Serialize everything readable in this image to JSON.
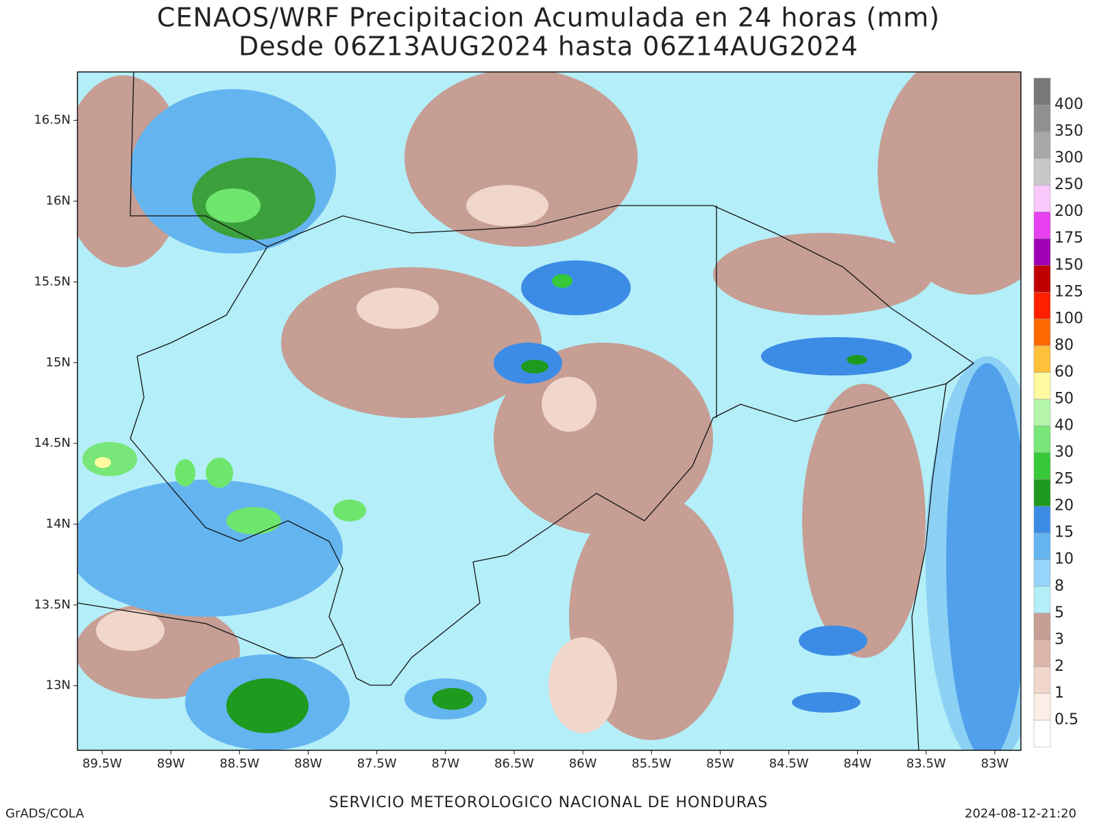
{
  "chart_data": {
    "type": "contour-map",
    "title": "CENAOS/WRF Precipitacion Acumulada en 24 horas (mm)",
    "subtitle": "Desde 06Z13AUG2024 hasta 06Z14AUG2024",
    "xlim": [
      -89.68,
      -82.81
    ],
    "ylim": [
      12.6,
      16.8
    ],
    "xticks": [
      {
        "value": -89.5,
        "label": "89.5W"
      },
      {
        "value": -89,
        "label": "89W"
      },
      {
        "value": -88.5,
        "label": "88.5W"
      },
      {
        "value": -88,
        "label": "88W"
      },
      {
        "value": -87.5,
        "label": "87.5W"
      },
      {
        "value": -87,
        "label": "87W"
      },
      {
        "value": -86.5,
        "label": "86.5W"
      },
      {
        "value": -86,
        "label": "86W"
      },
      {
        "value": -85.5,
        "label": "85.5W"
      },
      {
        "value": -85,
        "label": "85W"
      },
      {
        "value": -84.5,
        "label": "84.5W"
      },
      {
        "value": -84,
        "label": "84W"
      },
      {
        "value": -83.5,
        "label": "83.5W"
      },
      {
        "value": -83,
        "label": "83W"
      }
    ],
    "yticks": [
      {
        "value": 13,
        "label": "13N"
      },
      {
        "value": 13.5,
        "label": "13.5N"
      },
      {
        "value": 14,
        "label": "14N"
      },
      {
        "value": 14.5,
        "label": "14.5N"
      },
      {
        "value": 15,
        "label": "15N"
      },
      {
        "value": 15.5,
        "label": "15.5N"
      },
      {
        "value": 16,
        "label": "16N"
      },
      {
        "value": 16.5,
        "label": "16.5N"
      }
    ],
    "levels": [
      0.5,
      1,
      2,
      3,
      5,
      8,
      10,
      15,
      20,
      25,
      30,
      40,
      50,
      60,
      80,
      100,
      125,
      150,
      175,
      200,
      250,
      300,
      350,
      400
    ],
    "colors": [
      "#ffffff",
      "#fbeee6",
      "#f0d6cb",
      "#dcb6aa",
      "#c69e94",
      "#b4eef8",
      "#96d4fa",
      "#64b4f0",
      "#3c8ce6",
      "#1e9a1e",
      "#37c837",
      "#78e678",
      "#b4f5aa",
      "#fffaa0",
      "#ffc03c",
      "#ff6a00",
      "#ff2000",
      "#c00000",
      "#a000b4",
      "#e640f0",
      "#fac8fa",
      "#c8c8c8",
      "#a8a8a8",
      "#909090",
      "#787878"
    ],
    "footer": "SERVICIO METEOROLOGICO NACIONAL DE HONDURAS",
    "credit": "GrADS/COLA",
    "timestamp": "2024-08-12-21:20"
  }
}
